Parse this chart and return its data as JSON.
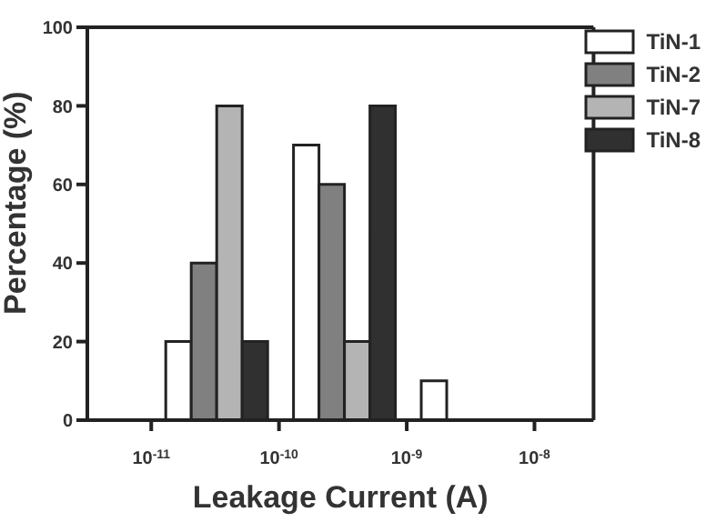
{
  "chart_data": {
    "type": "bar",
    "xlabel": "Leakage Current (A)",
    "ylabel": "Percentage (%)",
    "x": [
      3.16e-11,
      3.16e-10,
      3.16e-09
    ],
    "series": [
      {
        "name": "TiN-1",
        "color": "#ffffff",
        "values": [
          20,
          70,
          10
        ]
      },
      {
        "name": "TiN-2",
        "color": "#808080",
        "values": [
          40,
          60,
          0
        ]
      },
      {
        "name": "TiN-7",
        "color": "#b4b4b4",
        "values": [
          80,
          20,
          0
        ]
      },
      {
        "name": "TiN-8",
        "color": "#303030",
        "values": [
          20,
          80,
          0
        ]
      }
    ],
    "log": "x",
    "xlim": [
      3.16e-12,
      2.9e-08
    ],
    "xticks": [
      {
        "value": 1e-11,
        "label": "10$^{-11}$"
      },
      {
        "value": 1e-10,
        "label": "10$^{-10}$"
      },
      {
        "value": 1e-09,
        "label": "10$^{-9}$"
      },
      {
        "value": 1e-08,
        "label": "10$^{-8}$"
      }
    ],
    "ylim": [
      0,
      100
    ],
    "yticks": [
      0,
      20,
      40,
      60,
      80,
      100
    ],
    "grid": false,
    "legend": "top right"
  }
}
